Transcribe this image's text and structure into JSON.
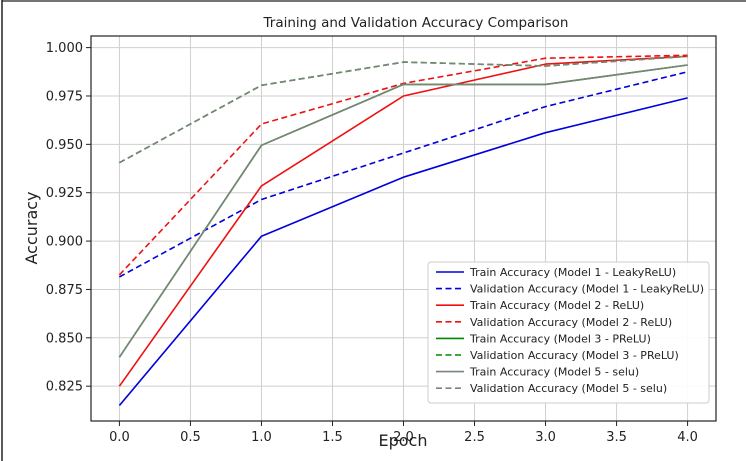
{
  "chart_data": {
    "type": "line",
    "title": "Training and Validation Accuracy Comparison",
    "xlabel": "Epoch",
    "ylabel": "Accuracy",
    "xlim": [
      -0.2,
      4.2
    ],
    "ylim": [
      0.807,
      1.006
    ],
    "xticks": [
      "0.0",
      "0.5",
      "1.0",
      "1.5",
      "2.0",
      "2.5",
      "3.0",
      "3.5",
      "4.0"
    ],
    "yticks": [
      "0.825",
      "0.850",
      "0.875",
      "0.900",
      "0.925",
      "0.950",
      "0.975",
      "1.000"
    ],
    "grid": true,
    "legend_position": "lower-right",
    "x": [
      0,
      1,
      2,
      3,
      4
    ],
    "series": [
      {
        "name": "Train Accuracy (Model 1 - LeakyReLU)",
        "color": "#0000dd",
        "dash": false,
        "values": [
          0.815,
          0.9025,
          0.933,
          0.956,
          0.974
        ]
      },
      {
        "name": "Validation Accuracy (Model 1 - LeakyReLU)",
        "color": "#0000dd",
        "dash": true,
        "values": [
          0.8815,
          0.9215,
          0.9455,
          0.9695,
          0.9875
        ]
      },
      {
        "name": "Train Accuracy (Model 2 - ReLU)",
        "color": "#ee1111",
        "dash": false,
        "values": [
          0.825,
          0.9285,
          0.975,
          0.9915,
          0.9955
        ]
      },
      {
        "name": "Validation Accuracy (Model 2 - ReLU)",
        "color": "#ee1111",
        "dash": true,
        "values": [
          0.8825,
          0.9605,
          0.9815,
          0.9945,
          0.996
        ]
      },
      {
        "name": "Train Accuracy (Model 3 - PReLU)",
        "color": "#008800",
        "dash": false,
        "values": [
          0.84,
          0.9495,
          0.981,
          0.981,
          0.991
        ]
      },
      {
        "name": "Validation Accuracy (Model 3 - PReLU)",
        "color": "#008800",
        "dash": true,
        "values": [
          0.9405,
          0.9805,
          0.9925,
          0.9905,
          0.9955
        ]
      },
      {
        "name": "Train Accuracy (Model 5 - selu)",
        "color": "#7a857a",
        "dash": false,
        "values": [
          0.84,
          0.9495,
          0.981,
          0.981,
          0.991
        ]
      },
      {
        "name": "Validation Accuracy (Model 5 - selu)",
        "color": "#7a857a",
        "dash": true,
        "values": [
          0.9405,
          0.9805,
          0.9925,
          0.9905,
          0.9955
        ]
      }
    ]
  }
}
